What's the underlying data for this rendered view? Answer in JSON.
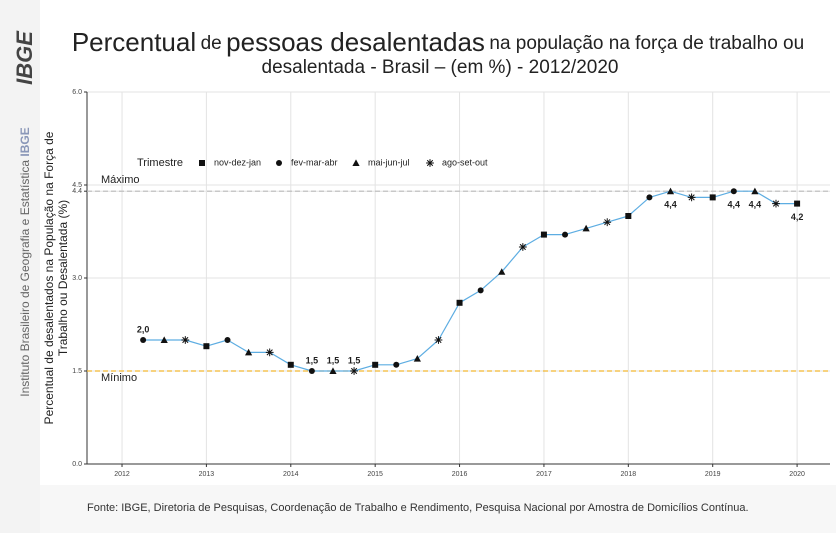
{
  "sidebar": {
    "logo": "IBGE",
    "institute": "Instituto Brasileiro de Geografia e Estatística",
    "abbr": "IBGE"
  },
  "chart_data": {
    "type": "line",
    "title": [
      "Percentual",
      "de",
      "pessoas desalentadas",
      "na população na força de trabalho ou",
      "desalentada - Brasil – (em %) - 2012/2020"
    ],
    "y_label": [
      "Percentual de desalentados na População na Força de",
      "Trabalho ou Desalentada (%)"
    ],
    "legend_title": "Trimestre",
    "source": "Fonte: IBGE, Diretoria de Pesquisas, Coordenação de Trabalho e Rendimento, Pesquisa Nacional por Amostra de Domicílios Contínua.",
    "line_color": "#5dade2",
    "grid": true,
    "xlim": [
      2011.585,
      2020.39
    ],
    "xticks": [
      2012,
      2013,
      2014,
      2015,
      2016,
      2017,
      2018,
      2019,
      2020
    ],
    "ylim": [
      0,
      6
    ],
    "yticks": [
      {
        "value": 0,
        "label": "0.0"
      },
      1.5,
      {
        "value": 3,
        "label": "3.0"
      },
      4.4,
      4.5,
      {
        "value": 6,
        "label": "6.0"
      }
    ],
    "reference_lines": [
      {
        "label": "Máximo",
        "value": 4.4,
        "color": "#bbbbbb"
      },
      {
        "label": "Mínimo",
        "value": 1.5,
        "color": "#f2b632"
      }
    ],
    "series": [
      {
        "name": "nov-dez-jan",
        "marker": "square",
        "color": "#111111",
        "x": [
          2013,
          2014,
          2015,
          2016,
          2017,
          2018,
          2019,
          2020
        ],
        "values": [
          1.9,
          1.6,
          1.6,
          2.6,
          3.7,
          4.0,
          4.3,
          4.2
        ],
        "value_labels": [
          null,
          null,
          null,
          null,
          null,
          null,
          null,
          "4,2"
        ]
      },
      {
        "name": "fev-mar-abr",
        "marker": "circle",
        "color": "#111111",
        "x": [
          2012.25,
          2013.25,
          2014.25,
          2015.25,
          2016.25,
          2017.25,
          2018.25,
          2019.25
        ],
        "values": [
          2.0,
          2.0,
          1.5,
          1.6,
          2.8,
          3.7,
          4.3,
          4.4
        ],
        "value_labels": [
          "2,0",
          null,
          "1,5",
          null,
          null,
          null,
          null,
          "4,4"
        ]
      },
      {
        "name": "mai-jun-jul",
        "marker": "triangle",
        "color": "#111111",
        "x": [
          2012.5,
          2013.5,
          2014.5,
          2015.5,
          2016.5,
          2017.5,
          2018.5,
          2019.5
        ],
        "values": [
          2.0,
          1.8,
          1.5,
          1.7,
          3.1,
          3.8,
          4.4,
          4.4
        ],
        "value_labels": [
          null,
          null,
          "1,5",
          null,
          null,
          null,
          "4,4",
          "4,4"
        ]
      },
      {
        "name": "ago-set-out",
        "marker": "asterisk",
        "color": "#111111",
        "x": [
          2012.75,
          2013.75,
          2014.75,
          2015.75,
          2016.75,
          2017.75,
          2018.75,
          2019.75
        ],
        "values": [
          2.0,
          1.8,
          1.5,
          2.0,
          3.5,
          3.9,
          4.3,
          4.2
        ],
        "value_labels": [
          null,
          null,
          "1,5",
          null,
          null,
          null,
          null,
          null
        ]
      }
    ]
  }
}
